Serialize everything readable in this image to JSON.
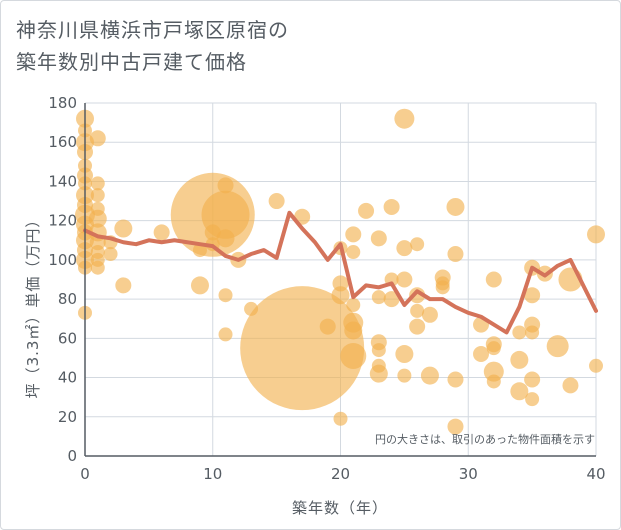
{
  "chart_data": {
    "type": "scatter",
    "title_lines": [
      "神奈川県横浜市戸塚区原宿の",
      "築年数別中古戸建て価格"
    ],
    "xlabel": "築年数（年）",
    "ylabel": "坪（3.3㎡）単価（万円）",
    "xlim": [
      0,
      40
    ],
    "ylim": [
      0,
      180
    ],
    "xticks": [
      "0",
      "10",
      "20",
      "30",
      "40"
    ],
    "yticks": [
      "0",
      "20",
      "40",
      "60",
      "80",
      "100",
      "120",
      "140",
      "160",
      "180"
    ],
    "grid": true,
    "note": "円の大きさは、取引のあった物件面積を示す",
    "colors": {
      "bubble": "#f2b04c",
      "line": "#d4735a",
      "grid": "#d3d9e0",
      "axis": "#555c63"
    },
    "average_line": {
      "x": [
        0,
        1,
        2,
        3,
        4,
        5,
        6,
        7,
        8,
        9,
        10,
        11,
        12,
        13,
        14,
        15,
        16,
        17,
        18,
        19,
        20,
        21,
        22,
        23,
        24,
        25,
        26,
        27,
        28,
        29,
        30,
        31,
        32,
        33,
        34,
        35,
        36,
        37,
        38,
        39,
        40
      ],
      "y": [
        115,
        112,
        111,
        109,
        108,
        110,
        109,
        110,
        109,
        108,
        107,
        102,
        100,
        103,
        105,
        101,
        124,
        116,
        109,
        100,
        108,
        81,
        87,
        86,
        88,
        77,
        84,
        80,
        80,
        76,
        73,
        71,
        67,
        63,
        76,
        96,
        92,
        97,
        100,
        87,
        74
      ]
    },
    "points": [
      {
        "x": 0,
        "y": 172,
        "s": 9
      },
      {
        "x": 0,
        "y": 166,
        "s": 7
      },
      {
        "x": 0,
        "y": 160,
        "s": 9
      },
      {
        "x": 0,
        "y": 155,
        "s": 8
      },
      {
        "x": 0,
        "y": 148,
        "s": 7
      },
      {
        "x": 0,
        "y": 143,
        "s": 8
      },
      {
        "x": 0,
        "y": 139,
        "s": 7
      },
      {
        "x": 0,
        "y": 133,
        "s": 9
      },
      {
        "x": 0,
        "y": 128,
        "s": 8
      },
      {
        "x": 0,
        "y": 123,
        "s": 10
      },
      {
        "x": 0,
        "y": 118,
        "s": 9
      },
      {
        "x": 0,
        "y": 114,
        "s": 8
      },
      {
        "x": 0,
        "y": 110,
        "s": 9
      },
      {
        "x": 0,
        "y": 105,
        "s": 8
      },
      {
        "x": 0,
        "y": 100,
        "s": 9
      },
      {
        "x": 0,
        "y": 96,
        "s": 7
      },
      {
        "x": 0,
        "y": 73,
        "s": 7
      },
      {
        "x": 1,
        "y": 162,
        "s": 8
      },
      {
        "x": 1,
        "y": 139,
        "s": 7
      },
      {
        "x": 1,
        "y": 133,
        "s": 7
      },
      {
        "x": 1,
        "y": 126,
        "s": 7
      },
      {
        "x": 1,
        "y": 121,
        "s": 9
      },
      {
        "x": 1,
        "y": 114,
        "s": 9
      },
      {
        "x": 1,
        "y": 109,
        "s": 8
      },
      {
        "x": 1,
        "y": 104,
        "s": 7
      },
      {
        "x": 1,
        "y": 100,
        "s": 7
      },
      {
        "x": 1,
        "y": 96,
        "s": 7
      },
      {
        "x": 2,
        "y": 109,
        "s": 7
      },
      {
        "x": 2,
        "y": 103,
        "s": 7
      },
      {
        "x": 3,
        "y": 116,
        "s": 9
      },
      {
        "x": 3,
        "y": 87,
        "s": 8
      },
      {
        "x": 6,
        "y": 114,
        "s": 8
      },
      {
        "x": 9,
        "y": 105,
        "s": 7
      },
      {
        "x": 9,
        "y": 87,
        "s": 9
      },
      {
        "x": 10,
        "y": 123,
        "s": 42
      },
      {
        "x": 10,
        "y": 114,
        "s": 8
      },
      {
        "x": 10,
        "y": 108,
        "s": 7
      },
      {
        "x": 11,
        "y": 123,
        "s": 24
      },
      {
        "x": 11,
        "y": 111,
        "s": 9
      },
      {
        "x": 11,
        "y": 82,
        "s": 7
      },
      {
        "x": 11,
        "y": 62,
        "s": 7
      },
      {
        "x": 11,
        "y": 138,
        "s": 8
      },
      {
        "x": 12,
        "y": 100,
        "s": 8
      },
      {
        "x": 13,
        "y": 75,
        "s": 7
      },
      {
        "x": 15,
        "y": 130,
        "s": 8
      },
      {
        "x": 17,
        "y": 122,
        "s": 8
      },
      {
        "x": 17,
        "y": 55,
        "s": 62
      },
      {
        "x": 19,
        "y": 66,
        "s": 8
      },
      {
        "x": 20,
        "y": 106,
        "s": 7
      },
      {
        "x": 20,
        "y": 88,
        "s": 8
      },
      {
        "x": 20,
        "y": 82,
        "s": 9
      },
      {
        "x": 20,
        "y": 19,
        "s": 7
      },
      {
        "x": 21,
        "y": 113,
        "s": 8
      },
      {
        "x": 21,
        "y": 104,
        "s": 7
      },
      {
        "x": 21,
        "y": 68,
        "s": 10
      },
      {
        "x": 21,
        "y": 64,
        "s": 9
      },
      {
        "x": 21,
        "y": 51,
        "s": 13
      },
      {
        "x": 21,
        "y": 77,
        "s": 7
      },
      {
        "x": 22,
        "y": 125,
        "s": 8
      },
      {
        "x": 23,
        "y": 111,
        "s": 8
      },
      {
        "x": 23,
        "y": 81,
        "s": 7
      },
      {
        "x": 23,
        "y": 58,
        "s": 8
      },
      {
        "x": 23,
        "y": 54,
        "s": 7
      },
      {
        "x": 23,
        "y": 46,
        "s": 7
      },
      {
        "x": 23,
        "y": 42,
        "s": 9
      },
      {
        "x": 24,
        "y": 127,
        "s": 8
      },
      {
        "x": 24,
        "y": 90,
        "s": 7
      },
      {
        "x": 24,
        "y": 80,
        "s": 8
      },
      {
        "x": 25,
        "y": 172,
        "s": 10
      },
      {
        "x": 25,
        "y": 106,
        "s": 8
      },
      {
        "x": 25,
        "y": 90,
        "s": 8
      },
      {
        "x": 25,
        "y": 52,
        "s": 9
      },
      {
        "x": 25,
        "y": 41,
        "s": 7
      },
      {
        "x": 26,
        "y": 108,
        "s": 7
      },
      {
        "x": 26,
        "y": 82,
        "s": 8
      },
      {
        "x": 26,
        "y": 74,
        "s": 7
      },
      {
        "x": 26,
        "y": 66,
        "s": 8
      },
      {
        "x": 27,
        "y": 72,
        "s": 8
      },
      {
        "x": 27,
        "y": 41,
        "s": 9
      },
      {
        "x": 28,
        "y": 91,
        "s": 8
      },
      {
        "x": 28,
        "y": 88,
        "s": 7
      },
      {
        "x": 28,
        "y": 86,
        "s": 7
      },
      {
        "x": 29,
        "y": 127,
        "s": 9
      },
      {
        "x": 29,
        "y": 103,
        "s": 8
      },
      {
        "x": 29,
        "y": 39,
        "s": 8
      },
      {
        "x": 29,
        "y": 15,
        "s": 8
      },
      {
        "x": 31,
        "y": 67,
        "s": 8
      },
      {
        "x": 31,
        "y": 52,
        "s": 8
      },
      {
        "x": 32,
        "y": 90,
        "s": 8
      },
      {
        "x": 32,
        "y": 57,
        "s": 8
      },
      {
        "x": 32,
        "y": 55,
        "s": 7
      },
      {
        "x": 32,
        "y": 43,
        "s": 10
      },
      {
        "x": 32,
        "y": 38,
        "s": 7
      },
      {
        "x": 34,
        "y": 63,
        "s": 7
      },
      {
        "x": 34,
        "y": 49,
        "s": 9
      },
      {
        "x": 34,
        "y": 33,
        "s": 9
      },
      {
        "x": 35,
        "y": 96,
        "s": 8
      },
      {
        "x": 35,
        "y": 82,
        "s": 8
      },
      {
        "x": 35,
        "y": 67,
        "s": 8
      },
      {
        "x": 35,
        "y": 63,
        "s": 7
      },
      {
        "x": 35,
        "y": 39,
        "s": 8
      },
      {
        "x": 35,
        "y": 29,
        "s": 7
      },
      {
        "x": 36,
        "y": 93,
        "s": 8
      },
      {
        "x": 37,
        "y": 56,
        "s": 11
      },
      {
        "x": 38,
        "y": 90,
        "s": 12
      },
      {
        "x": 38,
        "y": 36,
        "s": 8
      },
      {
        "x": 40,
        "y": 113,
        "s": 9
      },
      {
        "x": 40,
        "y": 46,
        "s": 7
      }
    ]
  }
}
